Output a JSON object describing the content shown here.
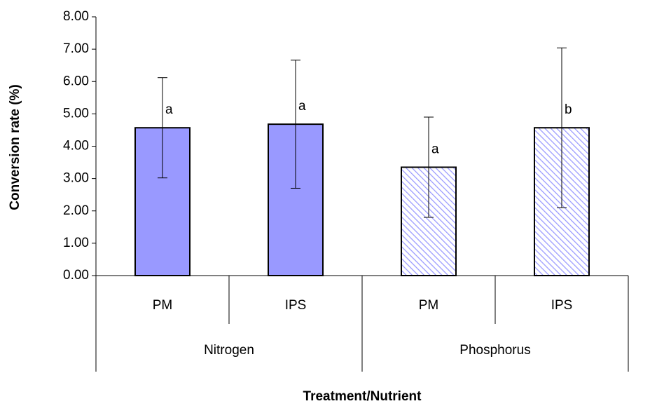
{
  "chart_data": {
    "type": "bar",
    "x_label": "Treatment/Nutrient",
    "y_label": "Conversion rate (%)",
    "categories": [
      "PM",
      "IPS",
      "PM",
      "IPS"
    ],
    "groups": [
      "Nitrogen",
      "Phosphorus"
    ],
    "values": [
      4.57,
      4.68,
      3.35,
      4.57
    ],
    "errors": [
      1.55,
      1.98,
      1.55,
      2.47
    ],
    "annotations": [
      "a",
      "a",
      "a",
      "b"
    ],
    "hatch": [
      false,
      false,
      true,
      true
    ],
    "color": "#9999ff",
    "ylim": [
      0,
      8
    ],
    "yticks": [
      {
        "value": 0,
        "label": "0.00"
      },
      {
        "value": 1,
        "label": "1.00"
      },
      {
        "value": 2,
        "label": "2.00"
      },
      {
        "value": 3,
        "label": "3.00"
      },
      {
        "value": 4,
        "label": "4.00"
      },
      {
        "value": 5,
        "label": "5.00"
      },
      {
        "value": 6,
        "label": "6.00"
      },
      {
        "value": 7,
        "label": "7.00"
      },
      {
        "value": 8,
        "label": "8.00"
      }
    ],
    "grid": false
  }
}
